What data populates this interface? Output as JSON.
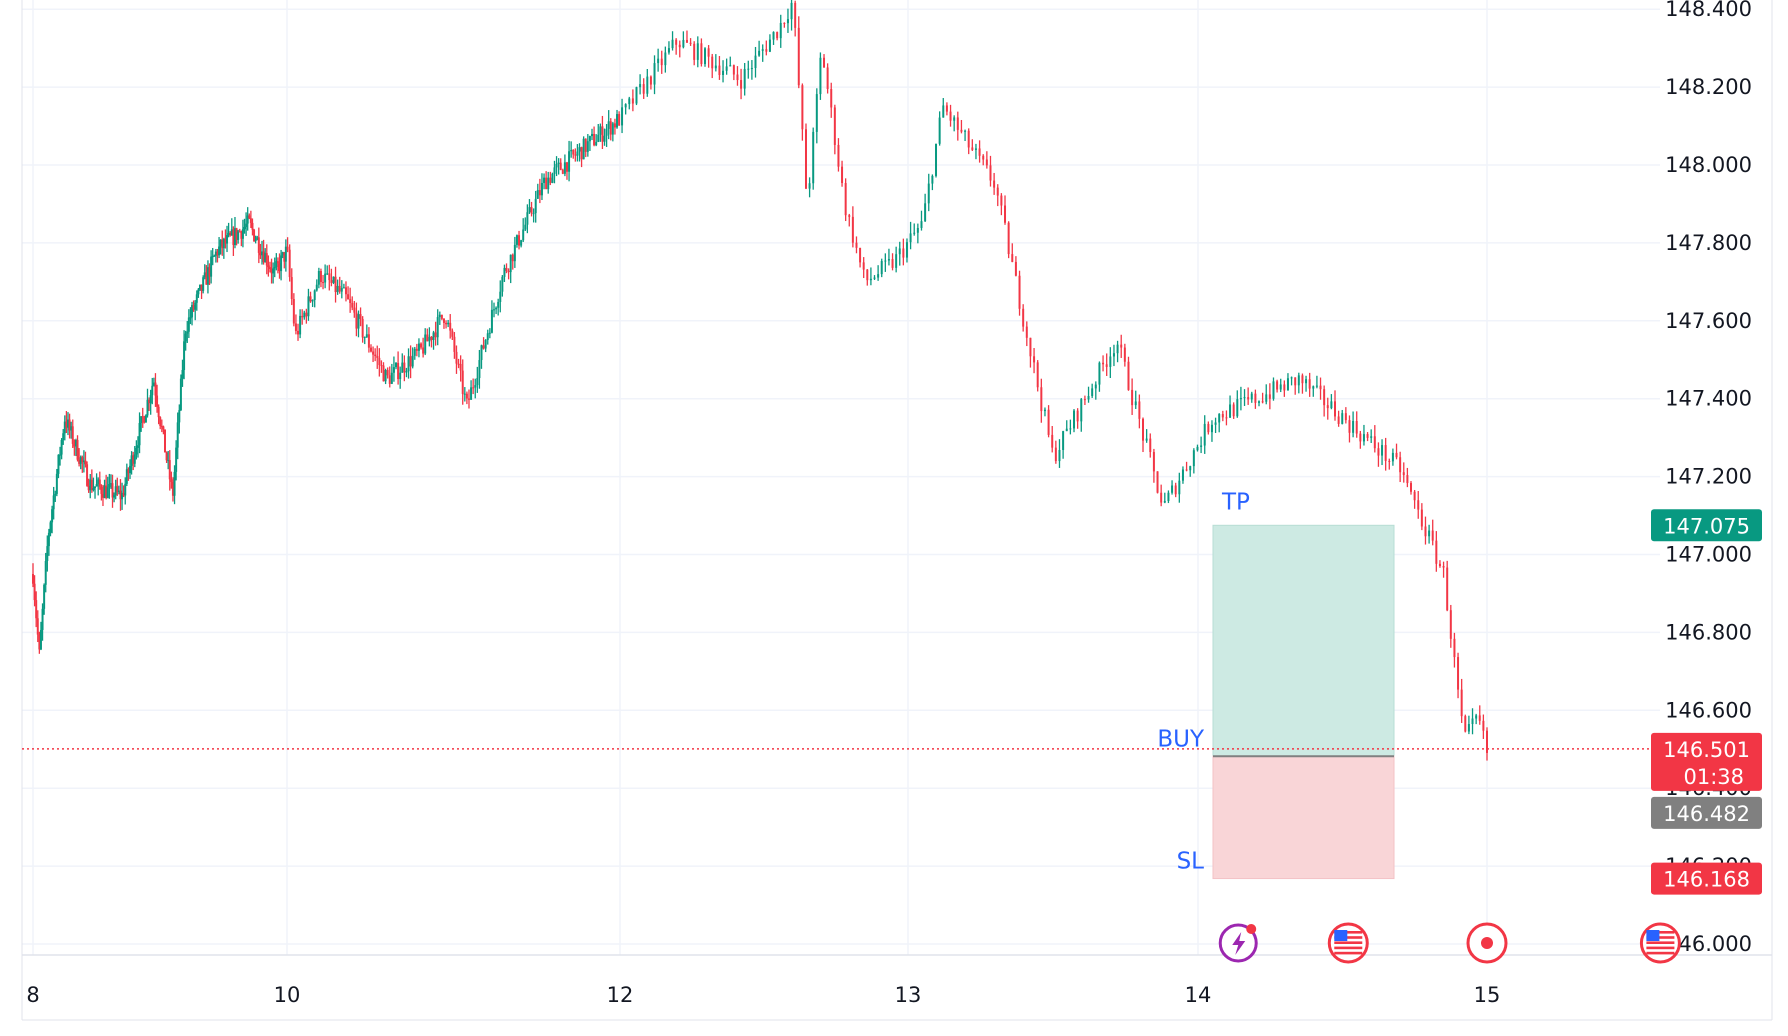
{
  "chart_data": {
    "type": "candlestick",
    "x_ticks": [
      "8",
      "10",
      "12",
      "13",
      "14",
      "15"
    ],
    "y_ticks": [
      "146.000",
      "146.200",
      "146.400",
      "146.600",
      "146.800",
      "147.000",
      "147.200",
      "147.400",
      "147.600",
      "147.800",
      "148.000",
      "148.200",
      "148.400"
    ],
    "ylim": [
      145.95,
      148.43
    ],
    "price_path": [
      [
        8.0,
        146.95
      ],
      [
        8.05,
        146.74
      ],
      [
        8.12,
        147.05
      ],
      [
        8.25,
        147.35
      ],
      [
        8.45,
        147.18
      ],
      [
        8.7,
        147.15
      ],
      [
        8.95,
        147.45
      ],
      [
        9.1,
        147.15
      ],
      [
        9.2,
        147.58
      ],
      [
        9.45,
        147.78
      ],
      [
        9.7,
        147.85
      ],
      [
        9.9,
        147.72
      ],
      [
        10.0,
        147.78
      ],
      [
        10.05,
        147.56
      ],
      [
        10.2,
        147.72
      ],
      [
        10.35,
        147.66
      ],
      [
        10.6,
        147.45
      ],
      [
        10.8,
        147.52
      ],
      [
        10.95,
        147.62
      ],
      [
        11.08,
        147.38
      ],
      [
        11.3,
        147.72
      ],
      [
        11.55,
        147.96
      ],
      [
        11.8,
        148.05
      ],
      [
        12.0,
        148.12
      ],
      [
        12.2,
        148.32
      ],
      [
        12.42,
        148.22
      ],
      [
        12.55,
        148.35
      ],
      [
        12.6,
        148.42
      ],
      [
        12.65,
        147.9
      ],
      [
        12.7,
        148.3
      ],
      [
        12.78,
        147.9
      ],
      [
        12.85,
        147.7
      ],
      [
        12.95,
        147.75
      ],
      [
        12.98,
        147.78
      ],
      [
        13.05,
        147.85
      ],
      [
        13.12,
        148.15
      ],
      [
        13.3,
        147.95
      ],
      [
        13.5,
        147.25
      ],
      [
        13.72,
        147.55
      ],
      [
        13.88,
        147.12
      ],
      [
        14.05,
        147.35
      ],
      [
        14.35,
        147.45
      ],
      [
        14.7,
        147.22
      ],
      [
        14.85,
        146.95
      ],
      [
        14.92,
        146.52
      ],
      [
        14.97,
        146.58
      ],
      [
        15.0,
        146.49
      ]
    ],
    "position": {
      "type": "long",
      "entry": 146.482,
      "take_profit": 147.075,
      "stop_loss": 146.168
    },
    "labels": {
      "tp": "TP",
      "buy": "BUY",
      "sl": "SL"
    },
    "price_scale": {
      "take_profit_label": "147.075",
      "current_price_label": "146.501",
      "countdown_label": "01:38",
      "entry_label": "146.482",
      "stop_loss_label": "146.168"
    },
    "last_price": 146.501,
    "colors": {
      "up": "#089981",
      "down": "#f23645",
      "profit_zone": "#cdeae3",
      "loss_zone": "#f9d5d7",
      "marker_text": "#2962ff",
      "entry_badge": "#808080"
    }
  },
  "event_icons": [
    {
      "name": "lightning-event-icon",
      "slot": 14.07
    },
    {
      "name": "us-flag-icon",
      "slot": 14.52
    },
    {
      "name": "record-icon",
      "slot": 15.0
    },
    {
      "name": "us-flag-icon",
      "slot": 15.6
    }
  ]
}
